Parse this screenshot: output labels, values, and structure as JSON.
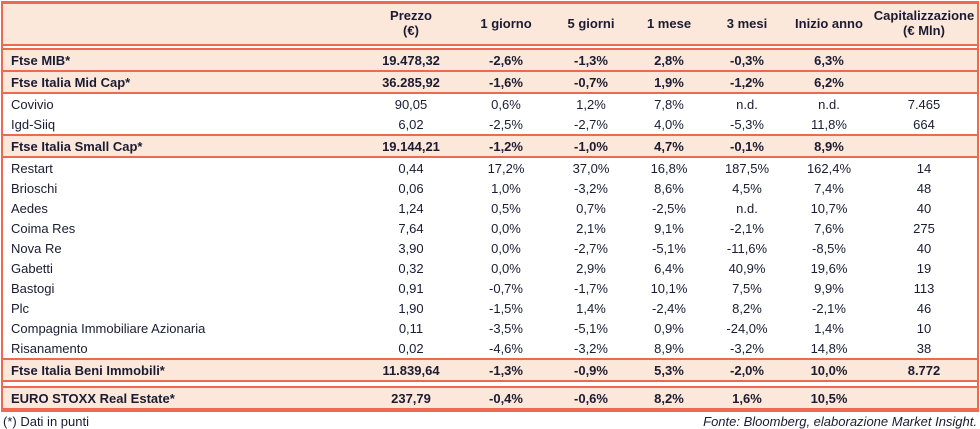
{
  "colors": {
    "accent": "#ee6950",
    "row_highlight": "#fce8da",
    "text": "#1b1b33"
  },
  "table": {
    "columns": [
      {
        "label": "",
        "sub": ""
      },
      {
        "label": "Prezzo",
        "sub": "(€)"
      },
      {
        "label": "1 giorno",
        "sub": ""
      },
      {
        "label": "5 giorni",
        "sub": ""
      },
      {
        "label": "1 mese",
        "sub": ""
      },
      {
        "label": "3 mesi",
        "sub": ""
      },
      {
        "label": "Inizio anno",
        "sub": ""
      },
      {
        "label": "Capitalizzazione",
        "sub": "(€ Mln)"
      }
    ],
    "rows": [
      {
        "name": "Ftse MIB*",
        "type": "index",
        "sep_above": "double",
        "values": [
          "19.478,32",
          "-2,6%",
          "-1,3%",
          "2,8%",
          "-0,3%",
          "6,3%",
          ""
        ]
      },
      {
        "name": "Ftse Italia Mid Cap*",
        "type": "index",
        "sep_above": "single",
        "values": [
          "36.285,92",
          "-1,6%",
          "-0,7%",
          "1,9%",
          "-1,2%",
          "6,2%",
          ""
        ]
      },
      {
        "name": "Covivio",
        "type": "stock",
        "sep_above": "single",
        "values": [
          "90,05",
          "0,6%",
          "1,2%",
          "7,8%",
          "n.d.",
          "n.d.",
          "7.465"
        ]
      },
      {
        "name": "Igd-Siiq",
        "type": "stock",
        "sep_above": "none",
        "values": [
          "6,02",
          "-2,5%",
          "-2,7%",
          "4,0%",
          "-5,3%",
          "11,8%",
          "664"
        ]
      },
      {
        "name": "Ftse Italia Small Cap*",
        "type": "index",
        "sep_above": "single",
        "values": [
          "19.144,21",
          "-1,2%",
          "-1,0%",
          "4,7%",
          "-0,1%",
          "8,9%",
          ""
        ]
      },
      {
        "name": "Restart",
        "type": "stock",
        "sep_above": "single",
        "values": [
          "0,44",
          "17,2%",
          "37,0%",
          "16,8%",
          "187,5%",
          "162,4%",
          "14"
        ]
      },
      {
        "name": "Brioschi",
        "type": "stock",
        "sep_above": "none",
        "values": [
          "0,06",
          "1,0%",
          "-3,2%",
          "8,6%",
          "4,5%",
          "7,4%",
          "48"
        ]
      },
      {
        "name": "Aedes",
        "type": "stock",
        "sep_above": "none",
        "values": [
          "1,24",
          "0,5%",
          "0,7%",
          "-2,5%",
          "n.d.",
          "10,7%",
          "40"
        ]
      },
      {
        "name": "Coima Res",
        "type": "stock",
        "sep_above": "none",
        "values": [
          "7,64",
          "0,0%",
          "2,1%",
          "9,1%",
          "-2,1%",
          "7,6%",
          "275"
        ]
      },
      {
        "name": "Nova Re",
        "type": "stock",
        "sep_above": "none",
        "values": [
          "3,90",
          "0,0%",
          "-2,7%",
          "-5,1%",
          "-11,6%",
          "-8,5%",
          "40"
        ]
      },
      {
        "name": "Gabetti",
        "type": "stock",
        "sep_above": "none",
        "values": [
          "0,32",
          "0,0%",
          "2,9%",
          "6,4%",
          "40,9%",
          "19,6%",
          "19"
        ]
      },
      {
        "name": "Bastogi",
        "type": "stock",
        "sep_above": "none",
        "values": [
          "0,91",
          "-0,7%",
          "-1,7%",
          "10,1%",
          "7,5%",
          "9,9%",
          "113"
        ]
      },
      {
        "name": "Plc",
        "type": "stock",
        "sep_above": "none",
        "values": [
          "1,90",
          "-1,5%",
          "1,4%",
          "-2,4%",
          "8,2%",
          "-2,1%",
          "46"
        ]
      },
      {
        "name": "Compagnia Immobiliare Azionaria",
        "type": "stock",
        "sep_above": "none",
        "values": [
          "0,11",
          "-3,5%",
          "-5,1%",
          "0,9%",
          "-24,0%",
          "1,4%",
          "10"
        ]
      },
      {
        "name": "Risanamento",
        "type": "stock",
        "sep_above": "none",
        "values": [
          "0,02",
          "-4,6%",
          "-3,2%",
          "8,9%",
          "-3,2%",
          "14,8%",
          "38"
        ]
      },
      {
        "name": "Ftse Italia Beni Immobili*",
        "type": "index",
        "sep_above": "single",
        "values": [
          "11.839,64",
          "-1,3%",
          "-0,9%",
          "5,3%",
          "-2,0%",
          "10,0%",
          "8.772"
        ]
      },
      {
        "name": "EURO STOXX Real Estate*",
        "type": "index",
        "sep_above": "double-wide",
        "values": [
          "237,79",
          "-0,4%",
          "-0,6%",
          "8,2%",
          "1,6%",
          "10,5%",
          ""
        ]
      }
    ]
  },
  "footer": {
    "note": "(*) Dati in punti",
    "source": "Fonte: Bloomberg, elaborazione Market Insight."
  }
}
